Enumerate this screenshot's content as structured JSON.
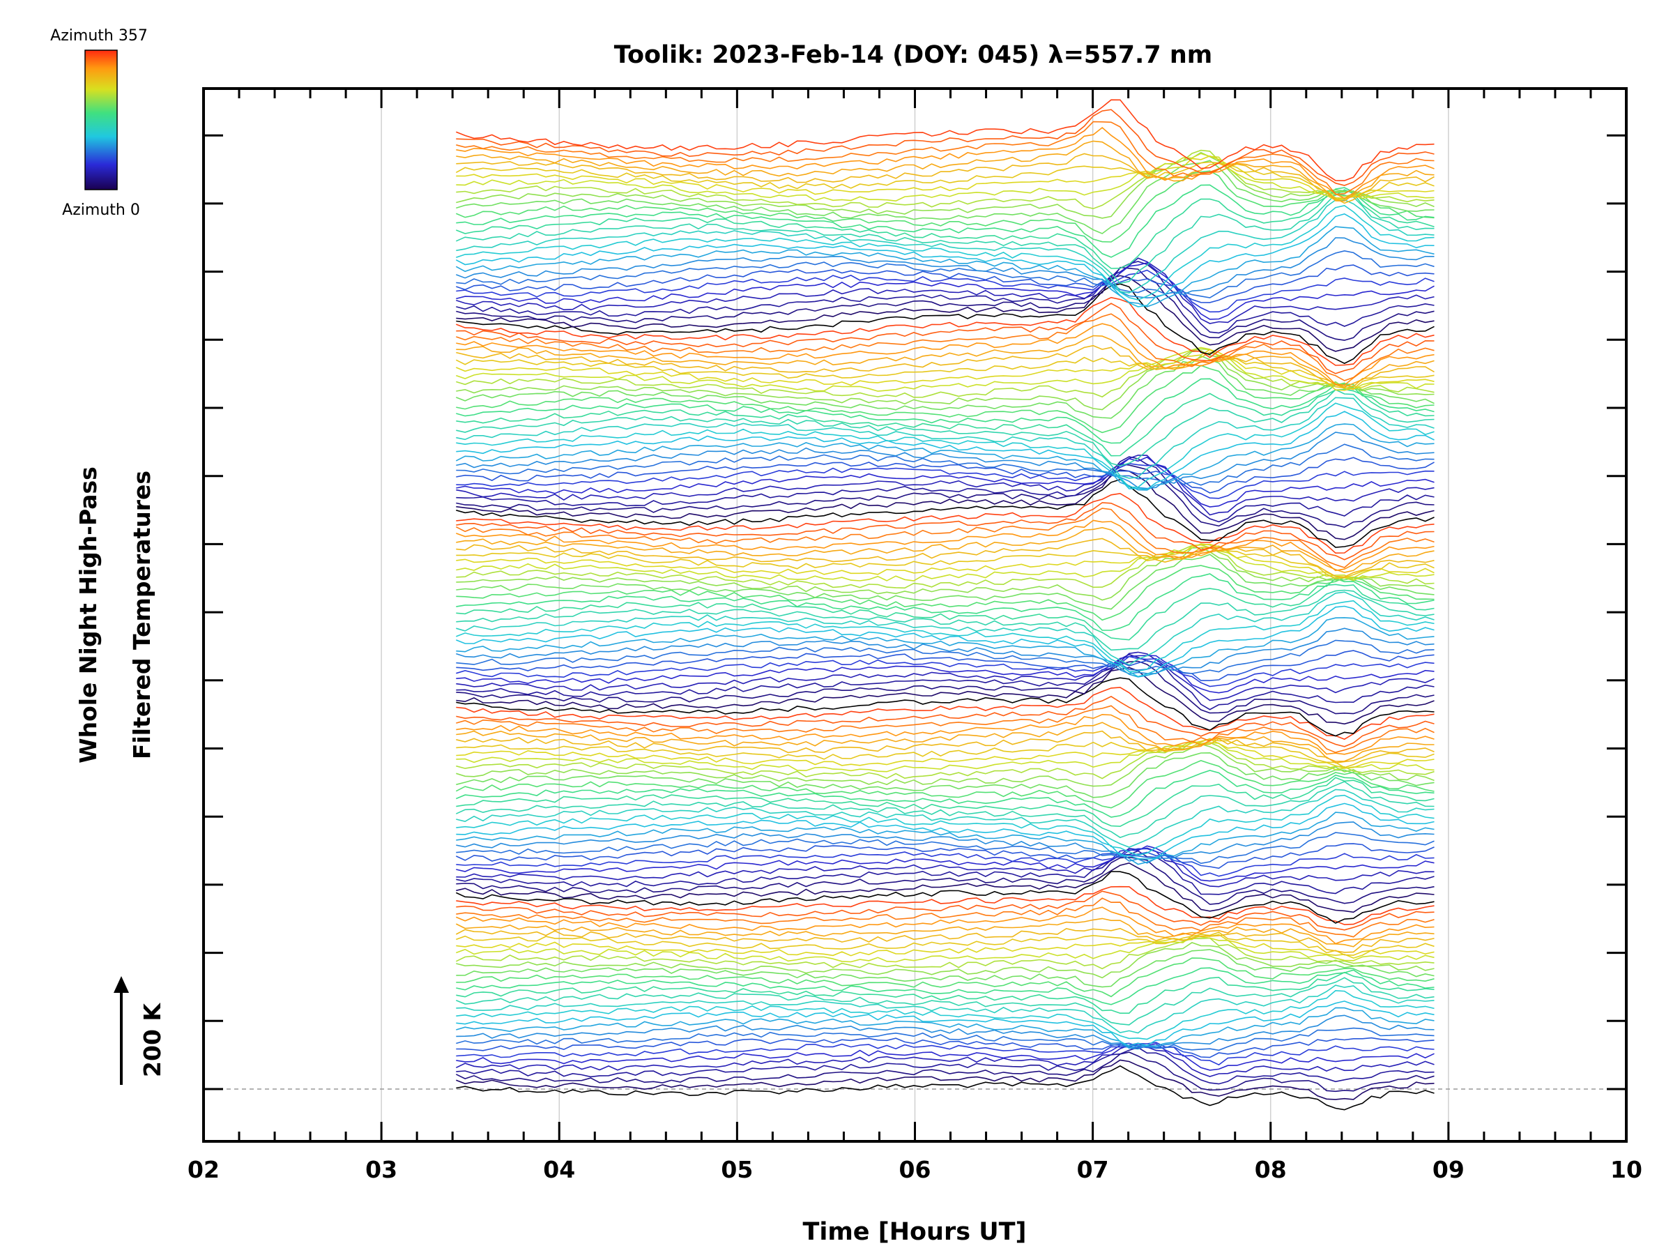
{
  "chart_data": {
    "type": "line",
    "title": "Toolik: 2023-Feb-14 (DOY: 045) λ=557.7 nm",
    "xlabel": "Time [Hours UT]",
    "ylabel_line1": "Whole Night High-Pass",
    "ylabel_line2": "Filtered Temperatures",
    "scale_label": "200 K",
    "xlim": [
      2,
      10
    ],
    "x_ticks": [
      "02",
      "03",
      "04",
      "05",
      "06",
      "07",
      "08",
      "09",
      "10"
    ],
    "x_range_data": [
      3.42,
      8.92
    ],
    "grid": true,
    "colorbar": {
      "top_label": "Azimuth 357",
      "bottom_label": "Azimuth 0",
      "colormap": "rainbow"
    },
    "series_info": "Stacked traces, one per azimuth (0–357°), grouped in zenith rings; vertical offset per trace is nominal",
    "colors": {
      "axis": "#000000",
      "grid": "#d0d0d0",
      "baseline": "#999999"
    }
  }
}
